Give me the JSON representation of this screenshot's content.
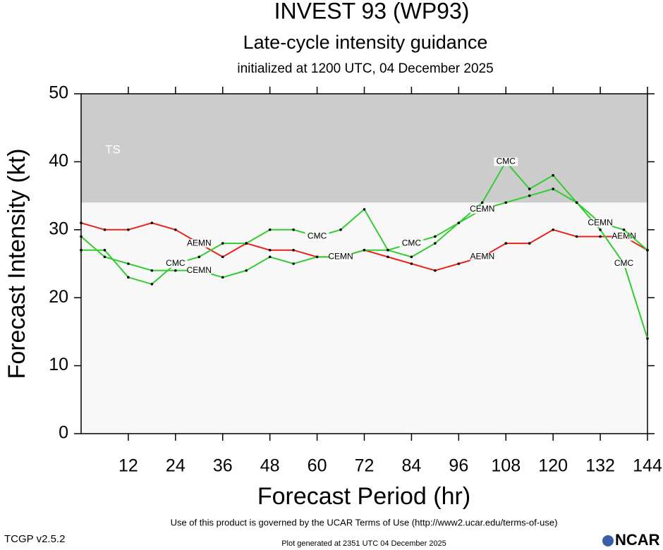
{
  "chart_data": {
    "type": "line",
    "title": "INVEST 93 (WP93)",
    "subtitle": "Late-cycle intensity guidance",
    "init_text": "initialized at 1200 UTC, 04 December 2025",
    "xlabel": "Forecast Period (hr)",
    "ylabel": "Forecast Intensity (kt)",
    "x": [
      0,
      6,
      12,
      18,
      24,
      30,
      36,
      42,
      48,
      54,
      60,
      66,
      72,
      78,
      84,
      90,
      96,
      102,
      108,
      114,
      120,
      126,
      132,
      138,
      144
    ],
    "xlim": [
      0,
      144
    ],
    "xticks": [
      12,
      24,
      36,
      48,
      60,
      72,
      84,
      96,
      108,
      120,
      132,
      144
    ],
    "ylim": [
      0,
      50
    ],
    "yticks": [
      0,
      10,
      20,
      30,
      40,
      50
    ],
    "bands": [
      {
        "label": "TS",
        "from": 34,
        "to": 50,
        "color": "#cccccc"
      }
    ],
    "background": "#f8f8f8",
    "series": [
      {
        "name": "AEMN",
        "color": "#e8231b",
        "values": [
          31,
          30,
          30,
          31,
          30,
          28,
          26,
          28,
          27,
          27,
          26,
          26,
          27,
          26,
          25,
          24,
          25,
          26,
          28,
          28,
          30,
          29,
          29,
          29,
          27
        ]
      },
      {
        "name": "CMC",
        "color": "#33cc33",
        "values": [
          27,
          27,
          23,
          22,
          25,
          26,
          28,
          28,
          30,
          30,
          29,
          30,
          33,
          27,
          28,
          29,
          31,
          34,
          40,
          36,
          38,
          34,
          30,
          25,
          14
        ]
      },
      {
        "name": "CEMN",
        "color": "#33cc33",
        "values": [
          29,
          26,
          25,
          24,
          24,
          24,
          23,
          24,
          26,
          25,
          26,
          26,
          27,
          27,
          26,
          28,
          31,
          33,
          34,
          35,
          36,
          34,
          31,
          30,
          27
        ]
      }
    ]
  },
  "footer": {
    "terms": "Use of this product is governed by the UCAR Terms of Use (http://www2.ucar.edu/terms-of-use)",
    "version": "TCGP v2.5.2",
    "generated": "Plot generated at 2351 UTC   04 December 2025",
    "logo": "NCAR"
  }
}
